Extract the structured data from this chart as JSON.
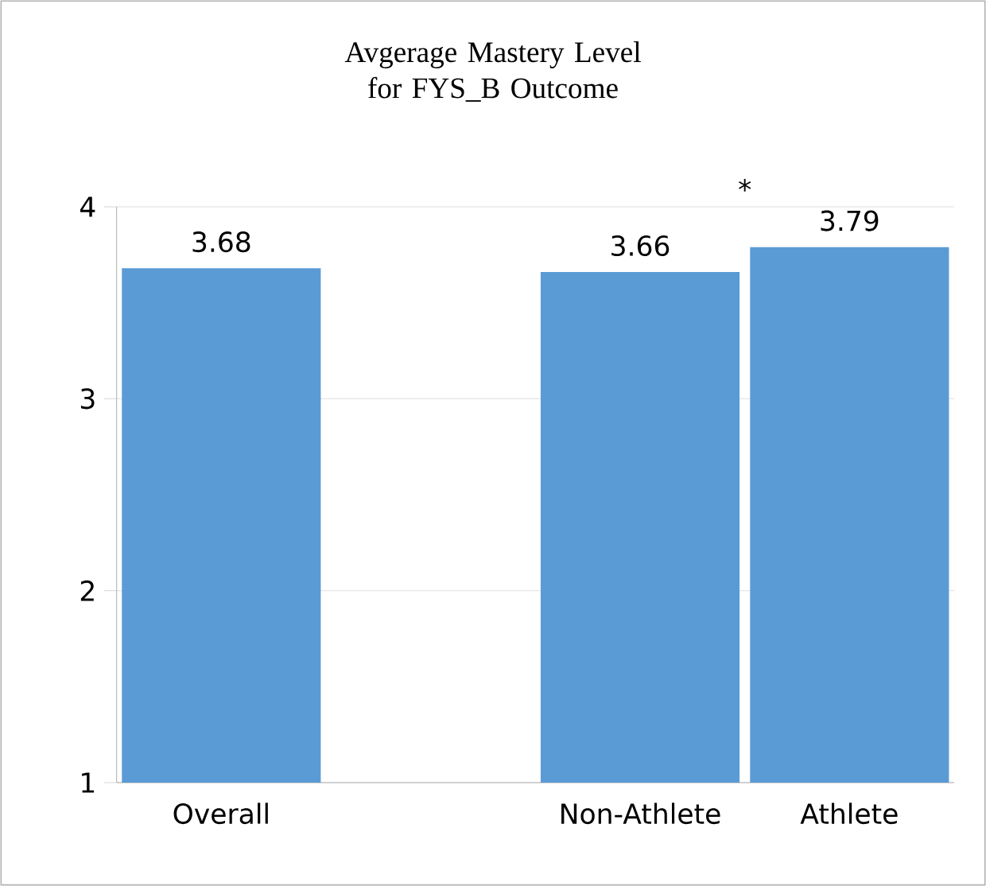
{
  "chart_data": {
    "type": "bar",
    "title": "Avgerage Mastery Level for FYS_B Outcome",
    "categories": [
      "Overall",
      null,
      "Non-Athlete",
      "Athlete"
    ],
    "values": [
      3.68,
      null,
      3.66,
      3.79
    ],
    "color": "#5b9bd5",
    "ylim": [
      1,
      4
    ],
    "yticks": [
      1,
      2,
      3,
      4
    ],
    "grid": "y",
    "data_labels": true,
    "annotations": [
      "*"
    ]
  }
}
